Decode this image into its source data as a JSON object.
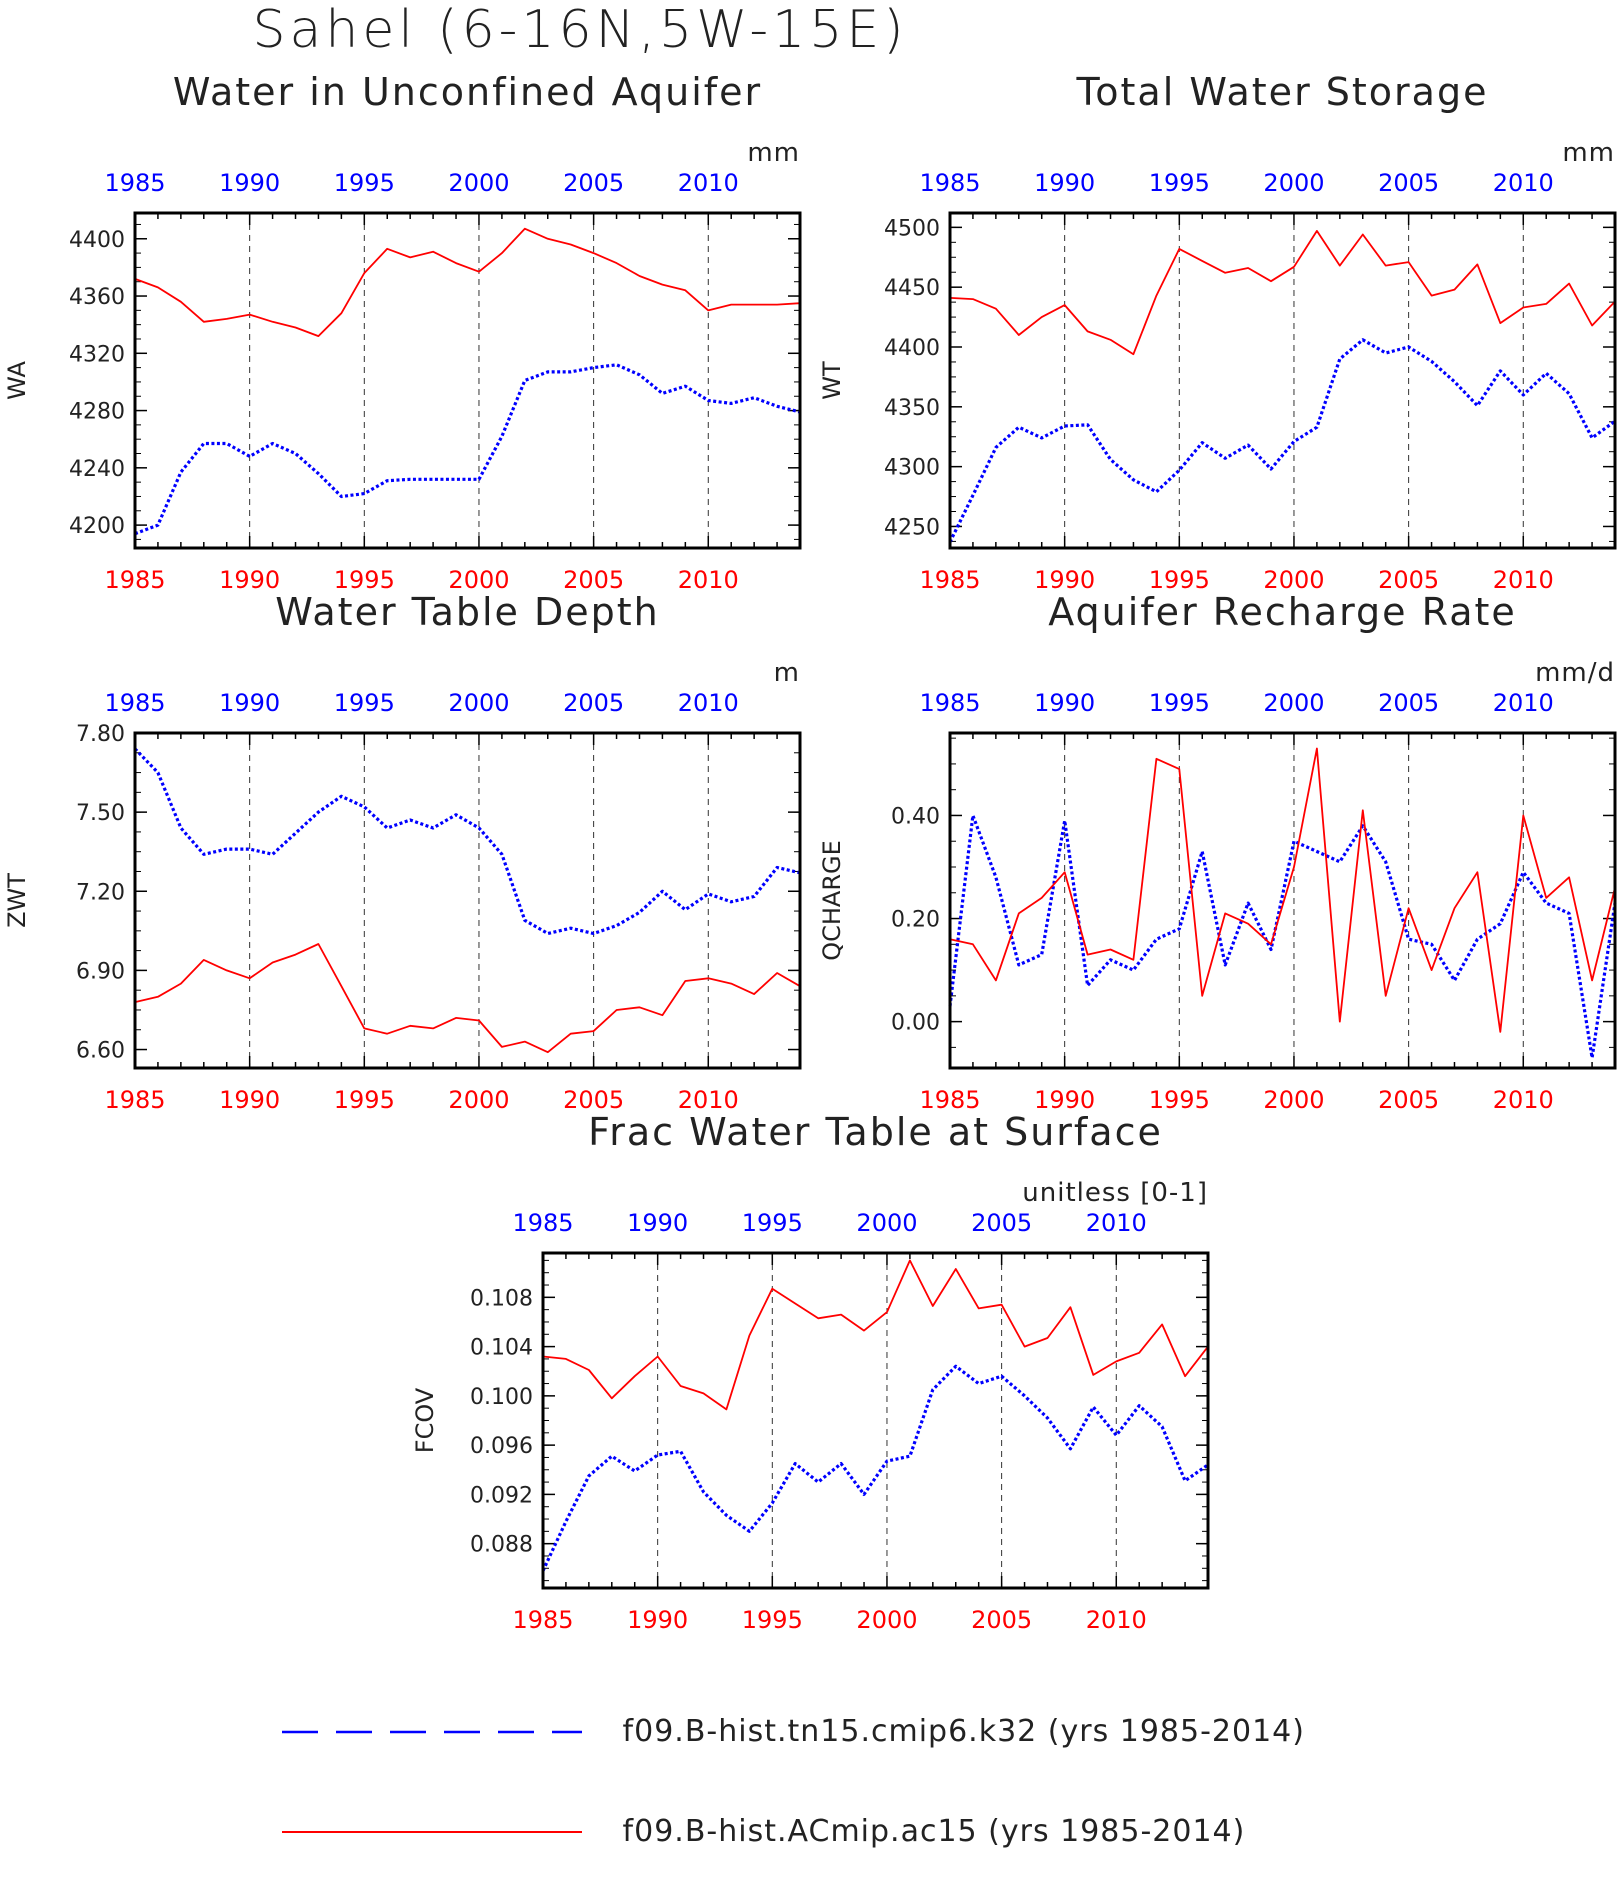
{
  "title": "Sahel (6-16N,5W-15E)",
  "colors": {
    "series_a": "#0000ff",
    "series_b": "#ff0000",
    "axis": "#000000",
    "text": "#222222"
  },
  "legend": [
    {
      "label": "f09.B-hist.tn15.cmip6.k32 (yrs 1985-2014)",
      "color": "#0000ff",
      "style": "dashed"
    },
    {
      "label": "f09.B-hist.ACmip.ac15 (yrs 1985-2014)",
      "color": "#ff0000",
      "style": "solid"
    }
  ],
  "chart_data": [
    {
      "type": "line",
      "title": "Water in Unconfined Aquifer",
      "ylabel": "WA",
      "units": "mm",
      "x": [
        1985,
        1986,
        1987,
        1988,
        1989,
        1990,
        1991,
        1992,
        1993,
        1994,
        1995,
        1996,
        1997,
        1998,
        1999,
        2000,
        2001,
        2002,
        2003,
        2004,
        2005,
        2006,
        2007,
        2008,
        2009,
        2010,
        2011,
        2012,
        2013,
        2014
      ],
      "xticks": [
        1985,
        1990,
        1995,
        2000,
        2005,
        2010
      ],
      "ylim": [
        4184,
        4418
      ],
      "yticks": [
        4200,
        4240,
        4280,
        4320,
        4360,
        4400
      ],
      "ytick_labels": [
        "4200",
        "4240",
        "4280",
        "4320",
        "4360",
        "4400"
      ],
      "grid": "dashed vertical at 1990,1995,2000,2005,2010",
      "series": [
        {
          "name": "f09.B-hist.tn15.cmip6.k32",
          "color": "#0000ff",
          "style": "dotted",
          "values": [
            4194,
            4200,
            4237,
            4257,
            4257,
            4248,
            4257,
            4250,
            4236,
            4220,
            4222,
            4231,
            4232,
            4232,
            4232,
            4232,
            4262,
            4301,
            4307,
            4307,
            4310,
            4312,
            4305,
            4292,
            4297,
            4287,
            4285,
            4289,
            4283,
            4279
          ]
        },
        {
          "name": "f09.B-hist.ACmip.ac15",
          "color": "#ff0000",
          "style": "solid",
          "values": [
            4372,
            4366,
            4356,
            4342,
            4344,
            4347,
            4342,
            4338,
            4332,
            4348,
            4376,
            4393,
            4387,
            4391,
            4383,
            4377,
            4390,
            4407,
            4400,
            4396,
            4390,
            4383,
            4374,
            4368,
            4364,
            4350,
            4354,
            4354,
            4354,
            4355
          ]
        }
      ]
    },
    {
      "type": "line",
      "title": "Total Water Storage",
      "ylabel": "WT",
      "units": "mm",
      "x": [
        1985,
        1986,
        1987,
        1988,
        1989,
        1990,
        1991,
        1992,
        1993,
        1994,
        1995,
        1996,
        1997,
        1998,
        1999,
        2000,
        2001,
        2002,
        2003,
        2004,
        2005,
        2006,
        2007,
        2008,
        2009,
        2010,
        2011,
        2012,
        2013,
        2014
      ],
      "xticks": [
        1985,
        1990,
        1995,
        2000,
        2005,
        2010
      ],
      "ylim": [
        4232,
        4512
      ],
      "yticks": [
        4250,
        4300,
        4350,
        4400,
        4450,
        4500
      ],
      "ytick_labels": [
        "4250",
        "4300",
        "4350",
        "4400",
        "4450",
        "4500"
      ],
      "grid": "dashed vertical at 1990,1995,2000,2005,2010",
      "series": [
        {
          "name": "f09.B-hist.tn15.cmip6.k32",
          "color": "#0000ff",
          "style": "dotted",
          "values": [
            4237,
            4276,
            4316,
            4333,
            4324,
            4334,
            4335,
            4306,
            4289,
            4279,
            4297,
            4320,
            4307,
            4318,
            4298,
            4321,
            4333,
            4390,
            4406,
            4395,
            4400,
            4388,
            4371,
            4351,
            4380,
            4360,
            4378,
            4361,
            4324,
            4338
          ]
        },
        {
          "name": "f09.B-hist.ACmip.ac15",
          "color": "#ff0000",
          "style": "solid",
          "values": [
            4441,
            4440,
            4432,
            4410,
            4425,
            4435,
            4413,
            4406,
            4394,
            4443,
            4482,
            4472,
            4462,
            4466,
            4455,
            4467,
            4497,
            4468,
            4494,
            4468,
            4471,
            4443,
            4448,
            4469,
            4420,
            4433,
            4436,
            4453,
            4418,
            4438
          ]
        }
      ]
    },
    {
      "type": "line",
      "title": "Water Table Depth",
      "ylabel": "ZWT",
      "units": "m",
      "x": [
        1985,
        1986,
        1987,
        1988,
        1989,
        1990,
        1991,
        1992,
        1993,
        1994,
        1995,
        1996,
        1997,
        1998,
        1999,
        2000,
        2001,
        2002,
        2003,
        2004,
        2005,
        2006,
        2007,
        2008,
        2009,
        2010,
        2011,
        2012,
        2013,
        2014
      ],
      "xticks": [
        1985,
        1990,
        1995,
        2000,
        2005,
        2010
      ],
      "ylim": [
        6.53,
        7.8
      ],
      "yticks": [
        6.6,
        6.9,
        7.2,
        7.5,
        7.8
      ],
      "ytick_labels": [
        "6.60",
        "6.90",
        "7.20",
        "7.50",
        "7.80"
      ],
      "grid": "dashed vertical at 1990,1995,2000,2005,2010",
      "series": [
        {
          "name": "f09.B-hist.tn15.cmip6.k32",
          "color": "#0000ff",
          "style": "dotted",
          "values": [
            7.74,
            7.65,
            7.44,
            7.34,
            7.36,
            7.36,
            7.34,
            7.42,
            7.5,
            7.56,
            7.52,
            7.44,
            7.47,
            7.44,
            7.49,
            7.44,
            7.34,
            7.09,
            7.04,
            7.06,
            7.04,
            7.07,
            7.12,
            7.2,
            7.13,
            7.19,
            7.16,
            7.18,
            7.29,
            7.27
          ]
        },
        {
          "name": "f09.B-hist.ACmip.ac15",
          "color": "#ff0000",
          "style": "solid",
          "values": [
            6.78,
            6.8,
            6.85,
            6.94,
            6.9,
            6.87,
            6.93,
            6.96,
            7.0,
            6.84,
            6.68,
            6.66,
            6.69,
            6.68,
            6.72,
            6.71,
            6.61,
            6.63,
            6.59,
            6.66,
            6.67,
            6.75,
            6.76,
            6.73,
            6.86,
            6.87,
            6.85,
            6.81,
            6.89,
            6.84
          ]
        }
      ]
    },
    {
      "type": "line",
      "title": "Aquifer Recharge Rate",
      "ylabel": "QCHARGE",
      "units": "mm/d",
      "x": [
        1985,
        1986,
        1987,
        1988,
        1989,
        1990,
        1991,
        1992,
        1993,
        1994,
        1995,
        1996,
        1997,
        1998,
        1999,
        2000,
        2001,
        2002,
        2003,
        2004,
        2005,
        2006,
        2007,
        2008,
        2009,
        2010,
        2011,
        2012,
        2013,
        2014
      ],
      "xticks": [
        1985,
        1990,
        1995,
        2000,
        2005,
        2010
      ],
      "ylim": [
        -0.09,
        0.56
      ],
      "yticks": [
        0.0,
        0.2,
        0.4
      ],
      "ytick_labels": [
        "0.00",
        "0.20",
        "0.40"
      ],
      "grid": "dashed vertical at 1990,1995,2000,2005,2010",
      "series": [
        {
          "name": "f09.B-hist.tn15.cmip6.k32",
          "color": "#0000ff",
          "style": "dotted",
          "values": [
            0.03,
            0.4,
            0.28,
            0.11,
            0.13,
            0.39,
            0.07,
            0.12,
            0.1,
            0.16,
            0.18,
            0.33,
            0.11,
            0.23,
            0.14,
            0.35,
            0.33,
            0.31,
            0.38,
            0.31,
            0.16,
            0.15,
            0.08,
            0.16,
            0.19,
            0.29,
            0.23,
            0.21,
            -0.07,
            0.23
          ]
        },
        {
          "name": "f09.B-hist.ACmip.ac15",
          "color": "#ff0000",
          "style": "solid",
          "values": [
            0.16,
            0.15,
            0.08,
            0.21,
            0.24,
            0.29,
            0.13,
            0.14,
            0.12,
            0.51,
            0.49,
            0.05,
            0.21,
            0.19,
            0.15,
            0.3,
            0.53,
            0.0,
            0.41,
            0.05,
            0.22,
            0.1,
            0.22,
            0.29,
            -0.02,
            0.4,
            0.24,
            0.28,
            0.08,
            0.26
          ]
        }
      ]
    },
    {
      "type": "line",
      "title": "Frac Water Table at Surface",
      "ylabel": "FCOV",
      "units": "unitless [0-1]",
      "x": [
        1985,
        1986,
        1987,
        1988,
        1989,
        1990,
        1991,
        1992,
        1993,
        1994,
        1995,
        1996,
        1997,
        1998,
        1999,
        2000,
        2001,
        2002,
        2003,
        2004,
        2005,
        2006,
        2007,
        2008,
        2009,
        2010,
        2011,
        2012,
        2013,
        2014
      ],
      "xticks": [
        1985,
        1990,
        1995,
        2000,
        2005,
        2010
      ],
      "ylim": [
        0.0844,
        0.1116
      ],
      "yticks": [
        0.088,
        0.092,
        0.096,
        0.1,
        0.104,
        0.108
      ],
      "ytick_labels": [
        "0.088",
        "0.092",
        "0.096",
        "0.100",
        "0.104",
        "0.108"
      ],
      "grid": "dashed vertical at 1990,1995,2000,2005,2010",
      "series": [
        {
          "name": "f09.B-hist.tn15.cmip6.k32",
          "color": "#0000ff",
          "style": "dotted",
          "values": [
            0.0858,
            0.0898,
            0.0935,
            0.0951,
            0.0939,
            0.0952,
            0.0955,
            0.0922,
            0.0903,
            0.089,
            0.0913,
            0.0945,
            0.093,
            0.0945,
            0.092,
            0.0947,
            0.0951,
            0.1005,
            0.1024,
            0.101,
            0.1016,
            0.1,
            0.0982,
            0.0957,
            0.0991,
            0.0968,
            0.0992,
            0.0975,
            0.0931,
            0.0944
          ]
        },
        {
          "name": "f09.B-hist.ACmip.ac15",
          "color": "#ff0000",
          "style": "solid",
          "values": [
            0.1032,
            0.103,
            0.1021,
            0.0998,
            0.1016,
            0.1032,
            0.1008,
            0.1002,
            0.0989,
            0.1049,
            0.1087,
            0.1075,
            0.1063,
            0.1066,
            0.1053,
            0.1068,
            0.111,
            0.1073,
            0.1103,
            0.1071,
            0.1074,
            0.104,
            0.1047,
            0.1072,
            0.1017,
            0.1028,
            0.1035,
            0.1058,
            0.1016,
            0.104
          ]
        }
      ]
    }
  ]
}
